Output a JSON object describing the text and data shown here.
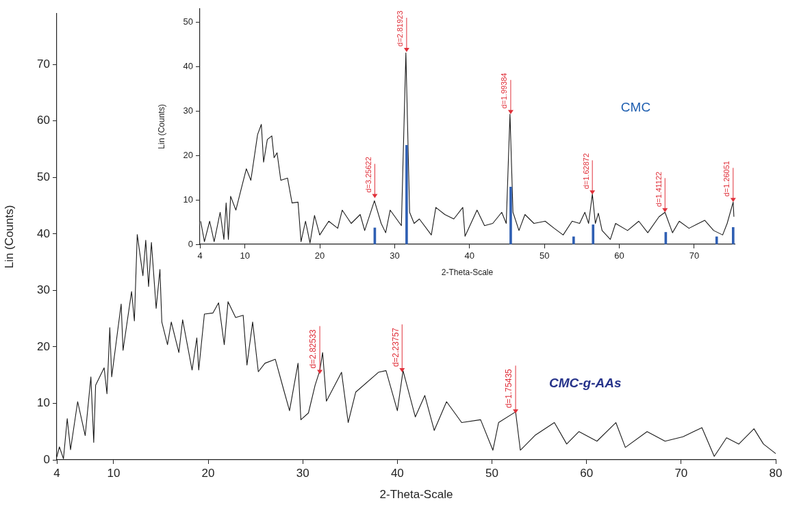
{
  "chart_data": [
    {
      "type": "line",
      "xlabel": "2-Theta-Scale",
      "ylabel": "Lin (Counts)",
      "xlim": [
        4,
        80
      ],
      "xticks": [
        4,
        10,
        20,
        30,
        40,
        50,
        60,
        70,
        80
      ],
      "ylim": [
        0,
        79
      ],
      "yticks": [
        0,
        10,
        20,
        30,
        40,
        50,
        60,
        70
      ],
      "grid": false,
      "legend": false,
      "marker": "none",
      "line_style": "solid",
      "series": [
        {
          "name": "CMC-g-AAs",
          "color": "#1a1a1a",
          "x": [
            4.0,
            4.27,
            4.7,
            5.1,
            5.45,
            6.2,
            7.0,
            7.6,
            7.9,
            8.1,
            9.0,
            9.3,
            9.6,
            9.8,
            10.8,
            11.0,
            11.9,
            12.2,
            12.5,
            13.1,
            13.4,
            13.7,
            14.0,
            14.5,
            14.9,
            15.1,
            15.7,
            16.1,
            16.9,
            17.3,
            18.3,
            18.8,
            19.0,
            19.6,
            20.5,
            21.1,
            21.7,
            22.1,
            22.9,
            23.7,
            24.1,
            24.7,
            25.3,
            26.0,
            27.1,
            28.0,
            28.6,
            29.5,
            29.8,
            30.6,
            31.3,
            31.8,
            32.1,
            32.5,
            34.1,
            34.8,
            35.6,
            38.0,
            38.8,
            40.0,
            40.6,
            41.9,
            42.9,
            43.9,
            45.2,
            46.8,
            48.8,
            50.1,
            50.7,
            52.5,
            53.0,
            54.6,
            56.6,
            57.9,
            59.2,
            61.1,
            63.1,
            64.1,
            66.4,
            68.3,
            70.2,
            72.2,
            73.5,
            74.8,
            76.1,
            77.7,
            78.7,
            80.0
          ],
          "values": [
            0.5,
            2.3,
            0.2,
            7.3,
            1.8,
            10.3,
            4.3,
            14.7,
            3.1,
            13.2,
            16.3,
            11.7,
            23.4,
            14.7,
            27.6,
            19.4,
            29.8,
            24.6,
            39.9,
            32.6,
            38.9,
            30.7,
            38.5,
            26.8,
            33.7,
            24.4,
            20.4,
            24.4,
            19.0,
            24.8,
            15.9,
            21.6,
            15.9,
            25.8,
            26.0,
            27.8,
            20.4,
            28.0,
            25.2,
            25.6,
            16.8,
            24.4,
            15.6,
            17.1,
            17.8,
            12.3,
            8.7,
            17.1,
            7.1,
            8.3,
            13.2,
            15.8,
            19.0,
            10.4,
            15.5,
            6.6,
            12.0,
            15.5,
            15.8,
            8.7,
            15.8,
            7.6,
            11.4,
            5.2,
            10.3,
            6.6,
            7.1,
            1.7,
            6.6,
            8.5,
            1.7,
            4.4,
            6.6,
            2.8,
            5.0,
            3.3,
            6.6,
            2.2,
            5.0,
            3.3,
            4.1,
            5.7,
            0.6,
            3.9,
            2.8,
            5.5,
            2.8,
            1.1
          ]
        }
      ],
      "annotations": [
        {
          "text": "d=2.82533",
          "x": 31.8,
          "y": 15.2
        },
        {
          "text": "d=2.23757",
          "x": 40.5,
          "y": 15.5
        },
        {
          "text": "d=1.75435",
          "x": 52.5,
          "y": 8.2
        }
      ]
    },
    {
      "type": "line",
      "xlabel": "2-Theta-Scale",
      "ylabel": "Lin (Counts)",
      "xlim": [
        4,
        75.4
      ],
      "xticks": [
        4,
        10,
        20,
        30,
        40,
        50,
        60,
        70
      ],
      "ylim": [
        0,
        53
      ],
      "yticks": [
        0,
        10,
        20,
        30,
        40,
        50
      ],
      "grid": false,
      "legend": false,
      "marker": "none",
      "line_style": "solid",
      "series": [
        {
          "name": "CMC",
          "color": "#1a1a1a",
          "x": [
            4.1,
            4.6,
            5.3,
            5.9,
            6.7,
            7.2,
            7.5,
            7.8,
            8.1,
            8.8,
            9.5,
            10.2,
            10.8,
            11.7,
            12.2,
            12.5,
            13.0,
            13.6,
            13.9,
            14.3,
            14.8,
            15.7,
            16.3,
            17.1,
            17.5,
            18.1,
            18.7,
            19.3,
            20.0,
            21.2,
            22.4,
            23.0,
            24.2,
            25.4,
            26.0,
            27.3,
            28.2,
            28.8,
            29.4,
            30.9,
            31.5,
            32.0,
            32.6,
            33.3,
            34.9,
            35.5,
            36.7,
            37.9,
            39.1,
            39.4,
            41.0,
            42.0,
            43.1,
            44.3,
            44.9,
            45.4,
            45.8,
            46.6,
            47.4,
            48.6,
            50.1,
            51.3,
            52.5,
            53.7,
            54.7,
            55.4,
            55.9,
            56.4,
            56.8,
            57.2,
            57.7,
            58.8,
            59.5,
            61.1,
            62.6,
            63.8,
            65.3,
            66.1,
            67.1,
            68.0,
            69.3,
            71.4,
            72.6,
            73.8,
            74.4,
            75.2,
            75.3
          ],
          "values": [
            5.2,
            0.6,
            5.2,
            0.6,
            7.2,
            1.1,
            9.3,
            1.1,
            10.8,
            7.7,
            12.4,
            17.0,
            14.4,
            24.7,
            27.0,
            18.5,
            23.6,
            24.4,
            19.5,
            20.6,
            14.4,
            14.9,
            9.3,
            9.5,
            0.6,
            5.2,
            0.3,
            6.5,
            2.1,
            5.2,
            3.6,
            7.7,
            4.7,
            6.7,
            3.1,
            9.8,
            4.7,
            2.6,
            7.7,
            4.2,
            43.1,
            7.2,
            4.7,
            5.7,
            2.1,
            8.3,
            6.7,
            5.7,
            8.3,
            1.8,
            7.7,
            4.2,
            4.7,
            7.2,
            4.7,
            29.3,
            7.2,
            3.1,
            6.7,
            4.7,
            5.2,
            3.6,
            2.1,
            5.2,
            4.7,
            7.2,
            4.7,
            11.3,
            4.7,
            7.0,
            3.1,
            1.1,
            4.7,
            3.1,
            5.2,
            2.6,
            6.2,
            7.2,
            2.6,
            5.2,
            3.6,
            5.4,
            3.1,
            2.1,
            4.7,
            9.5,
            6.2
          ]
        },
        {
          "type": "bar",
          "color": "#2f5fb3",
          "x": [
            27.35,
            31.6,
            45.5,
            53.9,
            56.5,
            66.2,
            73.0,
            75.2
          ],
          "values": [
            3.7,
            22.3,
            12.9,
            1.7,
            4.4,
            2.7,
            1.7,
            3.8
          ]
        }
      ],
      "annotations": [
        {
          "text": "d=3.25622",
          "x": 27.35,
          "y": 10.4
        },
        {
          "text": "d=2.81923",
          "x": 31.6,
          "y": 43.3
        },
        {
          "text": "d=1.99384",
          "x": 45.5,
          "y": 29.3
        },
        {
          "text": "d=1.62872",
          "x": 56.4,
          "y": 11.2
        },
        {
          "text": "d=1.41122",
          "x": 66.1,
          "y": 7.2
        },
        {
          "text": "d=1.26051",
          "x": 75.2,
          "y": 9.5
        }
      ]
    }
  ]
}
